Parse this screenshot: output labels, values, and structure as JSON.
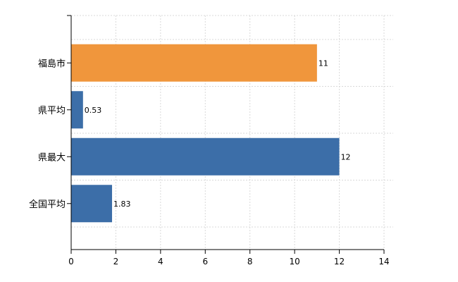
{
  "chart_data": {
    "type": "bar",
    "orientation": "horizontal",
    "categories": [
      "福島市",
      "県平均",
      "県最大",
      "全国平均"
    ],
    "values": [
      11,
      0.53,
      12,
      1.83
    ],
    "value_labels": [
      "11",
      "0.53",
      "12",
      "1.83"
    ],
    "colors": [
      "#f0963c",
      "#3c6ea8",
      "#3c6ea8",
      "#3c6ea8"
    ],
    "xlim": [
      0,
      14
    ],
    "xticks": [
      0,
      2,
      4,
      6,
      8,
      10,
      12,
      14
    ],
    "title": "",
    "xlabel": "",
    "ylabel": "",
    "grid": true
  }
}
